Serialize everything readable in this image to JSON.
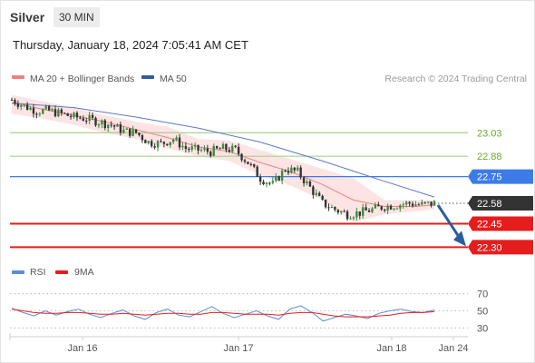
{
  "header": {
    "instrument": "Silver",
    "timeframe": "30 MIN",
    "datetime": "Thursday, January 18, 2024 7:05:41 AM CET"
  },
  "legend": {
    "ma20_label": "MA 20 + Bollinger Bands",
    "ma50_label": "MA 50",
    "credit": "Research © 2024 Trading Central",
    "rsi_label": "RSI",
    "ninema_label": "9MA"
  },
  "colors": {
    "up_candle": "#3c8c3c",
    "down_candle": "#333333",
    "ma20": "#f08080",
    "bollinger_fill": "#fbd9d9",
    "ma50": "#5b78c9",
    "resistance_green": "#a8d08d",
    "blue_level": "#3d7be8",
    "red_level": "#e51d1d",
    "current_price_bg": "#333333",
    "arrow": "#2d5d9e",
    "rsi_line": "#5b8dd8",
    "ninema_line": "#e51d1d"
  },
  "chart_data": [
    {
      "type": "line",
      "title": "",
      "panel": "price",
      "x_ticks": [
        "Jan 16",
        "Jan 17",
        "Jan 18",
        "Jan 24"
      ],
      "ylim": [
        22.25,
        23.35
      ],
      "levels": [
        {
          "value": 23.03,
          "label": "23.03",
          "kind": "resistance",
          "color": "#a8d08d"
        },
        {
          "value": 22.88,
          "label": "22.88",
          "kind": "resistance",
          "color": "#a8d08d"
        },
        {
          "value": 22.75,
          "label": "22.75",
          "kind": "pivot",
          "color": "#3d7be8"
        },
        {
          "value": 22.58,
          "label": "22.58",
          "kind": "current_price",
          "color": "#333333"
        },
        {
          "value": 22.45,
          "label": "22.45",
          "kind": "support",
          "color": "#e51d1d"
        },
        {
          "value": 22.3,
          "label": "22.30",
          "kind": "support",
          "color": "#e51d1d"
        }
      ],
      "close_path": [
        {
          "t": 0,
          "v": 23.24
        },
        {
          "t": 4,
          "v": 23.2
        },
        {
          "t": 8,
          "v": 23.17
        },
        {
          "t": 12,
          "v": 23.17
        },
        {
          "t": 16,
          "v": 23.15
        },
        {
          "t": 20,
          "v": 23.13
        },
        {
          "t": 24,
          "v": 23.12
        },
        {
          "t": 28,
          "v": 23.1
        },
        {
          "t": 32,
          "v": 23.08
        },
        {
          "t": 36,
          "v": 23.04
        },
        {
          "t": 40,
          "v": 23.03
        },
        {
          "t": 44,
          "v": 22.97
        },
        {
          "t": 48,
          "v": 22.96
        },
        {
          "t": 52,
          "v": 22.99
        },
        {
          "t": 56,
          "v": 22.93
        },
        {
          "t": 60,
          "v": 22.92
        },
        {
          "t": 64,
          "v": 22.91
        },
        {
          "t": 68,
          "v": 22.93
        },
        {
          "t": 72,
          "v": 22.92
        },
        {
          "t": 76,
          "v": 22.84
        },
        {
          "t": 80,
          "v": 22.74
        },
        {
          "t": 84,
          "v": 22.7
        },
        {
          "t": 88,
          "v": 22.8
        },
        {
          "t": 92,
          "v": 22.78
        },
        {
          "t": 96,
          "v": 22.68
        },
        {
          "t": 100,
          "v": 22.58
        },
        {
          "t": 104,
          "v": 22.54
        },
        {
          "t": 108,
          "v": 22.51
        },
        {
          "t": 112,
          "v": 22.52
        },
        {
          "t": 116,
          "v": 22.54
        },
        {
          "t": 120,
          "v": 22.56
        },
        {
          "t": 124,
          "v": 22.57
        },
        {
          "t": 128,
          "v": 22.58
        },
        {
          "t": 132,
          "v": 22.57
        },
        {
          "t": 136,
          "v": 22.58
        }
      ],
      "ma20": [
        {
          "t": 0,
          "v": 23.22
        },
        {
          "t": 10,
          "v": 23.18
        },
        {
          "t": 20,
          "v": 23.14
        },
        {
          "t": 30,
          "v": 23.1
        },
        {
          "t": 40,
          "v": 23.05
        },
        {
          "t": 50,
          "v": 23.0
        },
        {
          "t": 60,
          "v": 22.94
        },
        {
          "t": 70,
          "v": 22.91
        },
        {
          "t": 80,
          "v": 22.84
        },
        {
          "t": 90,
          "v": 22.78
        },
        {
          "t": 100,
          "v": 22.7
        },
        {
          "t": 110,
          "v": 22.6
        },
        {
          "t": 120,
          "v": 22.56
        },
        {
          "t": 130,
          "v": 22.56
        },
        {
          "t": 136,
          "v": 22.57
        }
      ],
      "bollinger_upper": [
        {
          "t": 0,
          "v": 23.27
        },
        {
          "t": 10,
          "v": 23.23
        },
        {
          "t": 20,
          "v": 23.19
        },
        {
          "t": 30,
          "v": 23.14
        },
        {
          "t": 40,
          "v": 23.1
        },
        {
          "t": 50,
          "v": 23.07
        },
        {
          "t": 60,
          "v": 22.99
        },
        {
          "t": 70,
          "v": 22.98
        },
        {
          "t": 80,
          "v": 22.92
        },
        {
          "t": 90,
          "v": 22.86
        },
        {
          "t": 100,
          "v": 22.8
        },
        {
          "t": 110,
          "v": 22.74
        },
        {
          "t": 120,
          "v": 22.6
        },
        {
          "t": 130,
          "v": 22.6
        },
        {
          "t": 136,
          "v": 22.6
        }
      ],
      "bollinger_lower": [
        {
          "t": 0,
          "v": 23.15
        },
        {
          "t": 10,
          "v": 23.12
        },
        {
          "t": 20,
          "v": 23.08
        },
        {
          "t": 30,
          "v": 23.03
        },
        {
          "t": 40,
          "v": 22.99
        },
        {
          "t": 50,
          "v": 22.93
        },
        {
          "t": 60,
          "v": 22.88
        },
        {
          "t": 70,
          "v": 22.85
        },
        {
          "t": 80,
          "v": 22.76
        },
        {
          "t": 90,
          "v": 22.69
        },
        {
          "t": 100,
          "v": 22.6
        },
        {
          "t": 110,
          "v": 22.46
        },
        {
          "t": 120,
          "v": 22.51
        },
        {
          "t": 130,
          "v": 22.53
        },
        {
          "t": 136,
          "v": 22.54
        }
      ],
      "ma50": [
        {
          "t": 0,
          "v": 23.22
        },
        {
          "t": 20,
          "v": 23.19
        },
        {
          "t": 40,
          "v": 23.13
        },
        {
          "t": 60,
          "v": 23.06
        },
        {
          "t": 80,
          "v": 22.97
        },
        {
          "t": 100,
          "v": 22.85
        },
        {
          "t": 120,
          "v": 22.72
        },
        {
          "t": 136,
          "v": 22.62
        }
      ],
      "projection": {
        "from": 22.58,
        "to": 22.3
      }
    },
    {
      "type": "line",
      "title": "",
      "panel": "rsi",
      "ylim": [
        25,
        75
      ],
      "y_ticks": [
        70,
        50,
        30
      ],
      "series": [
        {
          "name": "RSI",
          "values": [
            53,
            48,
            44,
            50,
            45,
            49,
            52,
            46,
            42,
            47,
            51,
            44,
            40,
            48,
            52,
            45,
            43,
            49,
            55,
            47,
            42,
            46,
            50,
            44,
            40,
            52,
            56,
            48,
            38,
            42,
            46,
            44,
            41,
            47,
            50,
            52,
            49,
            48,
            51
          ]
        },
        {
          "name": "9MA",
          "values": [
            52,
            50,
            48,
            47,
            47,
            48,
            48,
            47,
            46,
            46,
            47,
            46,
            45,
            46,
            47,
            47,
            46,
            46,
            48,
            48,
            47,
            46,
            46,
            46,
            45,
            47,
            48,
            48,
            46,
            44,
            43,
            43,
            43,
            44,
            45,
            47,
            48,
            48,
            49
          ]
        }
      ]
    }
  ]
}
